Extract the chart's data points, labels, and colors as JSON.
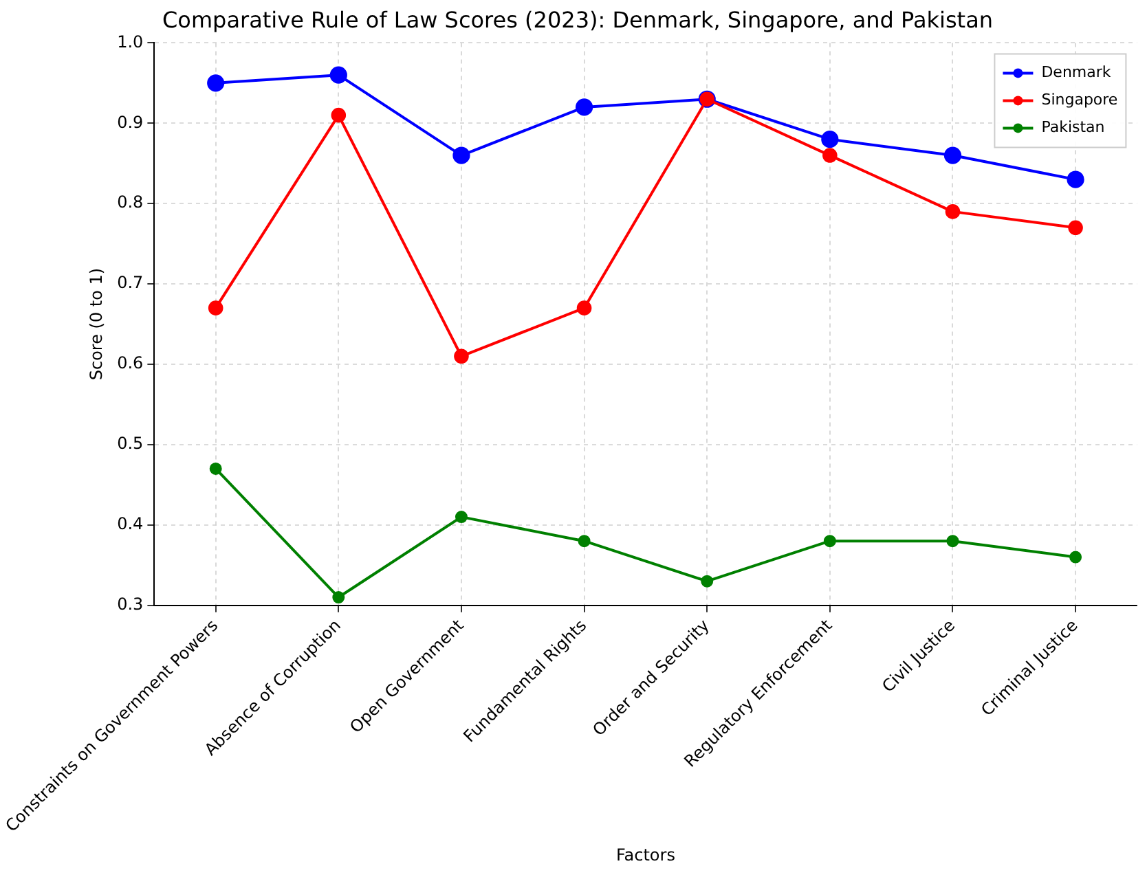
{
  "chart_data": {
    "type": "line",
    "title": "Comparative Rule of Law Scores (2023): Denmark, Singapore, and Pakistan",
    "xlabel": "Factors",
    "ylabel": "Score (0 to 1)",
    "categories": [
      "Constraints on Government Powers",
      "Absence of Corruption",
      "Open Government",
      "Fundamental Rights",
      "Order and Security",
      "Regulatory Enforcement",
      "Civil Justice",
      "Criminal Justice"
    ],
    "series": [
      {
        "name": "Denmark",
        "color": "#0000ff",
        "values": [
          0.95,
          0.96,
          0.86,
          0.92,
          0.93,
          0.88,
          0.86,
          0.83
        ]
      },
      {
        "name": "Singapore",
        "color": "#ff0000",
        "values": [
          0.67,
          0.91,
          0.61,
          0.67,
          0.93,
          0.86,
          0.79,
          0.77
        ]
      },
      {
        "name": "Pakistan",
        "color": "#008000",
        "values": [
          0.47,
          0.31,
          0.41,
          0.38,
          0.33,
          0.38,
          0.38,
          0.36
        ]
      }
    ],
    "ylim": [
      0.3,
      1.0
    ],
    "yticks": [
      0.3,
      0.4,
      0.5,
      0.6,
      0.7,
      0.8,
      0.9,
      {
        "value": 1.0,
        "label": "1.0"
      }
    ],
    "grid": true,
    "legend": "top right",
    "marker": "circle",
    "line_style": "solid"
  }
}
